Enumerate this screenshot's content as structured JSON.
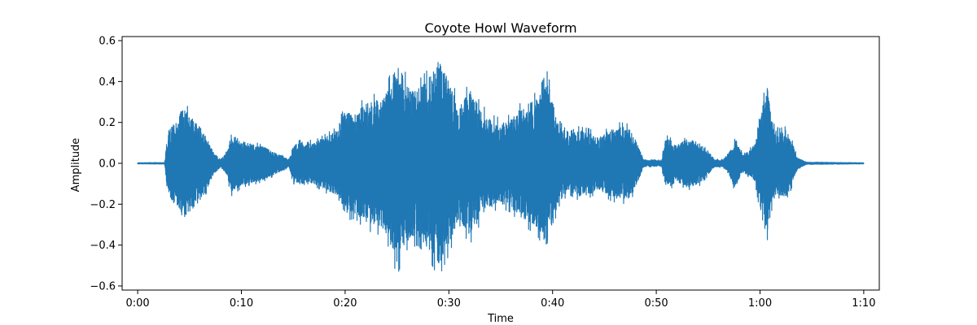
{
  "chart_data": {
    "type": "line",
    "title": "Coyote Howl Waveform",
    "xlabel": "Time",
    "ylabel": "Amplitude",
    "xlim": [
      -1.5,
      71.5
    ],
    "ylim": [
      -0.62,
      0.62
    ],
    "x_ticks": [
      {
        "value": 0,
        "label": "0:00"
      },
      {
        "value": 10,
        "label": "0:10"
      },
      {
        "value": 20,
        "label": "0:20"
      },
      {
        "value": 30,
        "label": "0:30"
      },
      {
        "value": 40,
        "label": "0:40"
      },
      {
        "value": 50,
        "label": "0:50"
      },
      {
        "value": 60,
        "label": "1:00"
      },
      {
        "value": 70,
        "label": "1:10"
      }
    ],
    "y_ticks": [
      {
        "value": 0.6,
        "label": "0.6"
      },
      {
        "value": 0.4,
        "label": "0.4"
      },
      {
        "value": 0.2,
        "label": "0.2"
      },
      {
        "value": 0.0,
        "label": "0.0"
      },
      {
        "value": -0.2,
        "label": "−0.2"
      },
      {
        "value": -0.4,
        "label": "−0.4"
      },
      {
        "value": -0.6,
        "label": "−0.6"
      }
    ],
    "grid": false,
    "series_color": "#1f77b4",
    "duration_seconds": 70,
    "envelope": [
      [
        0.0,
        0.003
      ],
      [
        2.6,
        0.004
      ],
      [
        2.8,
        0.12
      ],
      [
        3.2,
        0.2
      ],
      [
        3.8,
        0.24
      ],
      [
        4.3,
        0.3
      ],
      [
        5.0,
        0.27
      ],
      [
        5.8,
        0.22
      ],
      [
        6.5,
        0.16
      ],
      [
        7.3,
        0.06
      ],
      [
        8.0,
        0.02
      ],
      [
        8.6,
        0.06
      ],
      [
        9.0,
        0.16
      ],
      [
        9.8,
        0.13
      ],
      [
        10.5,
        0.11
      ],
      [
        11.5,
        0.1
      ],
      [
        12.5,
        0.08
      ],
      [
        13.5,
        0.05
      ],
      [
        14.6,
        0.02
      ],
      [
        15.0,
        0.1
      ],
      [
        16.0,
        0.12
      ],
      [
        17.0,
        0.11
      ],
      [
        18.0,
        0.14
      ],
      [
        19.0,
        0.17
      ],
      [
        20.0,
        0.28
      ],
      [
        21.0,
        0.27
      ],
      [
        22.0,
        0.33
      ],
      [
        23.0,
        0.34
      ],
      [
        24.0,
        0.38
      ],
      [
        25.0,
        0.55
      ],
      [
        26.0,
        0.42
      ],
      [
        27.0,
        0.4
      ],
      [
        28.0,
        0.46
      ],
      [
        29.0,
        0.56
      ],
      [
        30.0,
        0.45
      ],
      [
        31.0,
        0.3
      ],
      [
        32.0,
        0.4
      ],
      [
        33.0,
        0.3
      ],
      [
        34.0,
        0.24
      ],
      [
        35.0,
        0.22
      ],
      [
        36.0,
        0.24
      ],
      [
        37.0,
        0.3
      ],
      [
        38.5,
        0.35
      ],
      [
        39.5,
        0.45
      ],
      [
        40.5,
        0.22
      ],
      [
        41.5,
        0.15
      ],
      [
        42.5,
        0.18
      ],
      [
        43.5,
        0.17
      ],
      [
        44.5,
        0.14
      ],
      [
        45.5,
        0.18
      ],
      [
        46.5,
        0.2
      ],
      [
        47.5,
        0.19
      ],
      [
        48.2,
        0.1
      ],
      [
        48.8,
        0.02
      ],
      [
        50.5,
        0.015
      ],
      [
        50.9,
        0.14
      ],
      [
        51.5,
        0.12
      ],
      [
        52.0,
        0.1
      ],
      [
        53.0,
        0.13
      ],
      [
        54.0,
        0.12
      ],
      [
        55.0,
        0.06
      ],
      [
        55.6,
        0.02
      ],
      [
        56.4,
        0.02
      ],
      [
        57.0,
        0.06
      ],
      [
        57.6,
        0.14
      ],
      [
        58.3,
        0.05
      ],
      [
        59.0,
        0.07
      ],
      [
        59.6,
        0.12
      ],
      [
        60.2,
        0.3
      ],
      [
        60.7,
        0.42
      ],
      [
        61.2,
        0.2
      ],
      [
        61.8,
        0.17
      ],
      [
        62.5,
        0.18
      ],
      [
        63.0,
        0.13
      ],
      [
        63.6,
        0.03
      ],
      [
        64.5,
        0.006
      ],
      [
        70.0,
        0.003
      ]
    ]
  }
}
